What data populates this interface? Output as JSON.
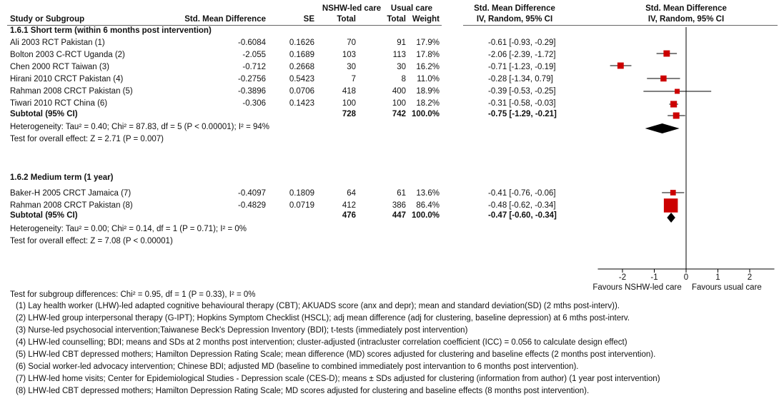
{
  "header": {
    "group1": {
      "nshw": "NSHW-led care",
      "usual": "Usual care",
      "smd": "Std. Mean Difference",
      "plot": "Std. Mean Difference"
    },
    "group2": {
      "study": "Study or Subgroup",
      "smd": "Std. Mean Difference",
      "se": "SE",
      "total1": "Total",
      "total2": "Total",
      "weight": "Weight",
      "ci": "IV, Random, 95% CI",
      "plot": "IV, Random, 95% CI"
    }
  },
  "subgroups": [
    {
      "title": "1.6.1 Short term (within 6 months post intervention)",
      "studies": [
        {
          "name": "Ali 2003 RCT Pakistan (1)",
          "smd": "-0.6084",
          "se": "0.1626",
          "n1": "70",
          "n2": "91",
          "weight": "17.9%",
          "ci": "-0.61 [-0.93, -0.29]"
        },
        {
          "name": "Bolton 2003 C-RCT Uganda (2)",
          "smd": "-2.055",
          "se": "0.1689",
          "n1": "103",
          "n2": "113",
          "weight": "17.8%",
          "ci": "-2.06 [-2.39, -1.72]"
        },
        {
          "name": "Chen 2000 RCT Taiwan (3)",
          "smd": "-0.712",
          "se": "0.2668",
          "n1": "30",
          "n2": "30",
          "weight": "16.2%",
          "ci": "-0.71 [-1.23, -0.19]"
        },
        {
          "name": "Hirani 2010 CRCT Pakistan (4)",
          "smd": "-0.2756",
          "se": "0.5423",
          "n1": "7",
          "n2": "8",
          "weight": "11.0%",
          "ci": "-0.28 [-1.34, 0.79]"
        },
        {
          "name": "Rahman 2008 CRCT Pakistan (5)",
          "smd": "-0.3896",
          "se": "0.0706",
          "n1": "418",
          "n2": "400",
          "weight": "18.9%",
          "ci": "-0.39 [-0.53, -0.25]"
        },
        {
          "name": "Tiwari 2010 RCT China (6)",
          "smd": "-0.306",
          "se": "0.1423",
          "n1": "100",
          "n2": "100",
          "weight": "18.2%",
          "ci": "-0.31 [-0.58, -0.03]"
        }
      ],
      "subtotal": {
        "label": "Subtotal (95% CI)",
        "n1": "728",
        "n2": "742",
        "weight": "100.0%",
        "ci": "-0.75 [-1.29, -0.21]"
      },
      "heterogeneity": "Heterogeneity: Tau² = 0.40; Chi² = 87.83, df = 5 (P < 0.00001); I² = 94%",
      "overall": "Test for overall effect: Z = 2.71 (P = 0.007)"
    },
    {
      "title": "1.6.2 Medium term (1 year)",
      "studies": [
        {
          "name": "Baker-H 2005 CRCT Jamaica (7)",
          "smd": "-0.4097",
          "se": "0.1809",
          "n1": "64",
          "n2": "61",
          "weight": "13.6%",
          "ci": "-0.41 [-0.76, -0.06]"
        },
        {
          "name": "Rahman 2008 CRCT Pakistan (8)",
          "smd": "-0.4829",
          "se": "0.0719",
          "n1": "412",
          "n2": "386",
          "weight": "86.4%",
          "ci": "-0.48 [-0.62, -0.34]"
        }
      ],
      "subtotal": {
        "label": "Subtotal (95% CI)",
        "n1": "476",
        "n2": "447",
        "weight": "100.0%",
        "ci": "-0.47 [-0.60, -0.34]"
      },
      "heterogeneity": "Heterogeneity: Tau² = 0.00; Chi² = 0.14, df = 1 (P = 0.71); I² = 0%",
      "overall": "Test for overall effect: Z = 7.08 (P < 0.00001)"
    }
  ],
  "subgroup_test": "Test for subgroup differences: Chi² = 0.95, df = 1 (P = 0.33), I² = 0%",
  "footnotes": [
    "(1) Lay health worker (LHW)-led adapted cognitive behavioural therapy (CBT); AKUADS score (anx and depr); mean and standard deviation(SD) (2 mths post-interv)).",
    "(2) LHW-led group interpersonal therapy (G-IPT); Hopkins Symptom Checklist (HSCL); adj mean difference (adj for clustering, baseline depression) at 6 mths post-interv.",
    "(3) Nurse-led psychosocial intervention;Taiwanese Beck's Depression Inventory (BDI); t-tests (immediately post intervention)",
    "(4) LHW-led counselling; BDI; means and SDs at 2 months post intervention; cluster-adjusted (intracluster correlation coefficient (ICC) = 0.056 to calculate design effect)",
    "(5) LHW-led CBT depressed mothers; Hamilton Depression Rating Scale; mean difference (MD) scores adjusted for clustering and baseline effects (2 months post intervention).",
    "(6) Social worker-led advocacy intervention; Chinese BDI; adjusted MD (baseline to combined immediately post intervantion to 6 months post intervention).",
    "(7) LHW-led home visits; Center for Epidemiological Studies - Depression scale (CES-D); means ± SDs adjusted for clustering (information from author) (1 year post intervention)",
    "(8) LHW-led CBT depressed mothers; Hamilton Depression Rating Scale; MD scores adjusted for clustering and baseline effects (8 months post intervention)."
  ],
  "chart_data": {
    "type": "forest",
    "xlim": [
      -3,
      3
    ],
    "ticks": [
      -2,
      -1,
      0,
      1,
      2
    ],
    "tick_labels": [
      "-2",
      "-1",
      "0",
      "1",
      "2"
    ],
    "favours_left": "Favours NSHW-led care",
    "favours_right": "Favours usual care",
    "colors": {
      "study_marker": "#cc0000",
      "diamond": "#000000",
      "line": "#000000"
    },
    "studies": [
      {
        "group": 1,
        "est": -0.61,
        "lo": -0.93,
        "hi": -0.29,
        "weight": 17.9
      },
      {
        "group": 1,
        "est": -2.06,
        "lo": -2.39,
        "hi": -1.72,
        "weight": 17.8
      },
      {
        "group": 1,
        "est": -0.71,
        "lo": -1.23,
        "hi": -0.19,
        "weight": 16.2
      },
      {
        "group": 1,
        "est": -0.28,
        "lo": -1.34,
        "hi": 0.79,
        "weight": 11.0
      },
      {
        "group": 1,
        "est": -0.39,
        "lo": -0.53,
        "hi": -0.25,
        "weight": 18.9
      },
      {
        "group": 1,
        "est": -0.31,
        "lo": -0.58,
        "hi": -0.03,
        "weight": 18.2
      },
      {
        "group": 2,
        "est": -0.41,
        "lo": -0.76,
        "hi": -0.06,
        "weight": 13.6
      },
      {
        "group": 2,
        "est": -0.48,
        "lo": -0.62,
        "hi": -0.34,
        "weight": 86.4
      }
    ],
    "subtotals": [
      {
        "group": 1,
        "est": -0.75,
        "lo": -1.29,
        "hi": -0.21
      },
      {
        "group": 2,
        "est": -0.47,
        "lo": -0.6,
        "hi": -0.34
      }
    ]
  }
}
